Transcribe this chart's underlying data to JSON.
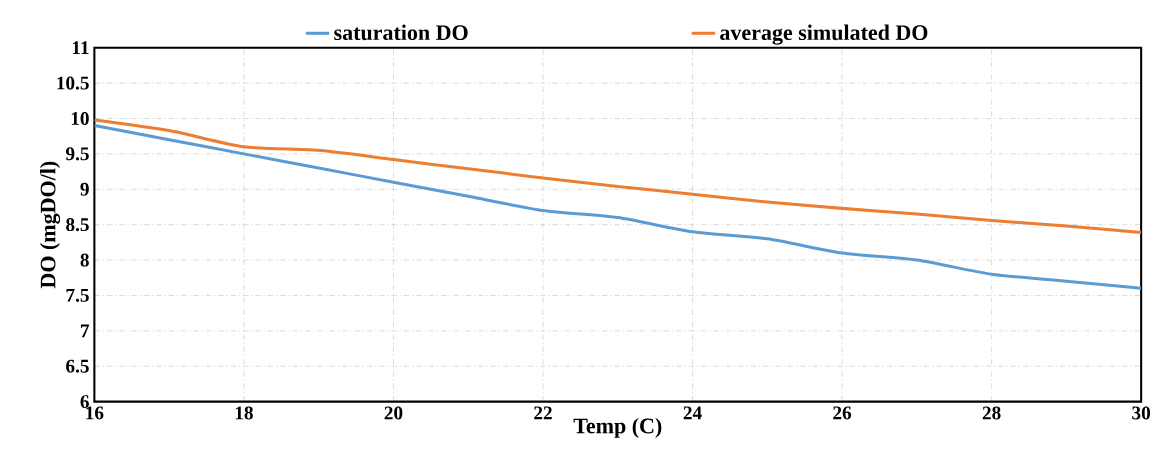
{
  "chart_data": {
    "type": "line",
    "xlabel": "Temp (C)",
    "ylabel": "DO (mgDO/l)",
    "x": [
      16,
      17,
      18,
      19,
      20,
      21,
      22,
      23,
      24,
      25,
      26,
      27,
      28,
      29,
      30
    ],
    "series": [
      {
        "name": "saturation DO",
        "color": "#5b9bd5",
        "values": [
          9.9,
          9.7,
          9.5,
          9.3,
          9.1,
          8.9,
          8.7,
          8.6,
          8.4,
          8.3,
          8.1,
          8.0,
          7.8,
          7.7,
          7.6
        ]
      },
      {
        "name": "average simulated DO",
        "color": "#ed7d31",
        "values": [
          9.98,
          9.83,
          9.6,
          9.55,
          9.42,
          9.29,
          9.16,
          9.04,
          8.93,
          8.82,
          8.73,
          8.65,
          8.56,
          8.48,
          8.39
        ]
      }
    ],
    "xlim": [
      16,
      30
    ],
    "xticks": [
      16,
      18,
      20,
      22,
      24,
      26,
      28,
      30
    ],
    "ylim": [
      6,
      11
    ],
    "yticks": [
      6,
      6.5,
      7,
      7.5,
      8,
      8.5,
      9,
      9.5,
      10,
      10.5,
      11
    ],
    "grid": true,
    "legend": "top",
    "marker": "none",
    "line_style": "solid"
  }
}
